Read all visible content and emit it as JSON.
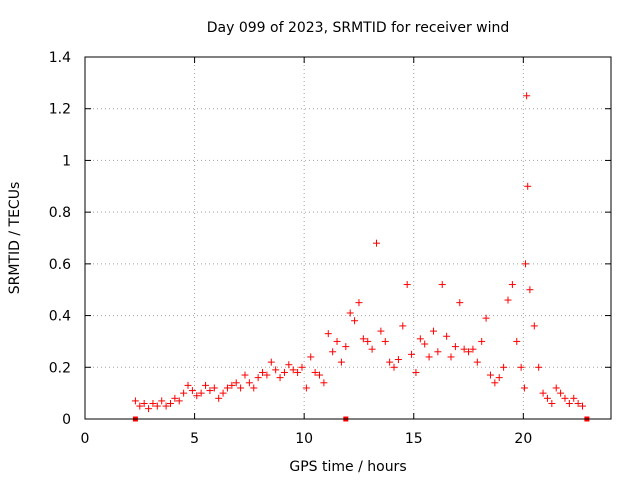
{
  "chart_data": {
    "type": "scatter",
    "title": "Day 099 of 2023, SRMTID for receiver wind",
    "xlabel": "GPS time / hours",
    "ylabel": "SRMTID / TECUs",
    "xlim": [
      0,
      24
    ],
    "ylim": [
      0,
      1.4
    ],
    "xticks": [
      0,
      5,
      10,
      15,
      20
    ],
    "xtick_labels": [
      "0",
      "5",
      "10",
      "15",
      "20"
    ],
    "yticks": [
      0,
      0.2,
      0.4,
      0.6,
      0.8,
      1.0,
      1.2,
      1.4
    ],
    "ytick_labels": [
      "0",
      "0.2",
      "0.4",
      "0.6",
      "0.8",
      "1",
      "1.2",
      "1.4"
    ],
    "grid": true,
    "marker": "+",
    "series_color": "#ff0000",
    "series": [
      {
        "name": "SRMTID",
        "x": [
          2.3,
          2.5,
          2.7,
          2.9,
          3.1,
          3.3,
          3.5,
          3.7,
          3.9,
          4.1,
          4.3,
          4.5,
          4.7,
          4.9,
          5.1,
          5.3,
          5.5,
          5.7,
          5.9,
          6.1,
          6.3,
          6.5,
          6.7,
          6.9,
          7.1,
          7.3,
          7.5,
          7.7,
          7.9,
          8.1,
          8.3,
          8.5,
          8.7,
          8.9,
          9.1,
          9.3,
          9.5,
          9.7,
          9.9,
          10.1,
          10.3,
          10.5,
          10.7,
          10.9,
          11.1,
          11.3,
          11.5,
          11.7,
          11.9,
          12.1,
          12.3,
          12.5,
          12.7,
          12.9,
          13.1,
          13.3,
          13.5,
          13.7,
          13.9,
          14.1,
          14.3,
          14.5,
          14.7,
          14.9,
          15.1,
          15.3,
          15.5,
          15.7,
          15.9,
          16.1,
          16.3,
          16.5,
          16.7,
          16.9,
          17.1,
          17.3,
          17.5,
          17.7,
          17.9,
          18.1,
          18.3,
          18.5,
          18.7,
          18.9,
          19.1,
          19.3,
          19.5,
          19.7,
          19.9,
          20.05,
          20.1,
          20.15,
          20.2,
          20.3,
          20.5,
          20.7,
          20.9,
          21.1,
          21.3,
          21.5,
          21.7,
          21.9,
          22.1,
          22.3,
          22.5,
          22.7
        ],
        "y": [
          0.07,
          0.05,
          0.06,
          0.04,
          0.06,
          0.05,
          0.07,
          0.05,
          0.06,
          0.08,
          0.07,
          0.1,
          0.13,
          0.11,
          0.09,
          0.1,
          0.13,
          0.11,
          0.12,
          0.08,
          0.1,
          0.12,
          0.13,
          0.14,
          0.12,
          0.17,
          0.14,
          0.12,
          0.16,
          0.18,
          0.17,
          0.22,
          0.19,
          0.16,
          0.18,
          0.21,
          0.19,
          0.18,
          0.2,
          0.12,
          0.24,
          0.18,
          0.17,
          0.14,
          0.33,
          0.26,
          0.3,
          0.22,
          0.28,
          0.41,
          0.38,
          0.45,
          0.31,
          0.3,
          0.27,
          0.68,
          0.34,
          0.3,
          0.22,
          0.2,
          0.23,
          0.36,
          0.52,
          0.25,
          0.18,
          0.31,
          0.29,
          0.24,
          0.34,
          0.26,
          0.52,
          0.32,
          0.24,
          0.28,
          0.45,
          0.27,
          0.26,
          0.27,
          0.22,
          0.3,
          0.39,
          0.17,
          0.14,
          0.16,
          0.2,
          0.46,
          0.52,
          0.3,
          0.2,
          0.12,
          0.6,
          1.25,
          0.9,
          0.5,
          0.36,
          0.2,
          0.1,
          0.08,
          0.06,
          0.12,
          0.1,
          0.08,
          0.06,
          0.08,
          0.06,
          0.05
        ]
      }
    ],
    "markers_bottom": {
      "x": [
        2.3,
        11.9,
        22.9
      ],
      "y": [
        0,
        0,
        0
      ]
    }
  }
}
